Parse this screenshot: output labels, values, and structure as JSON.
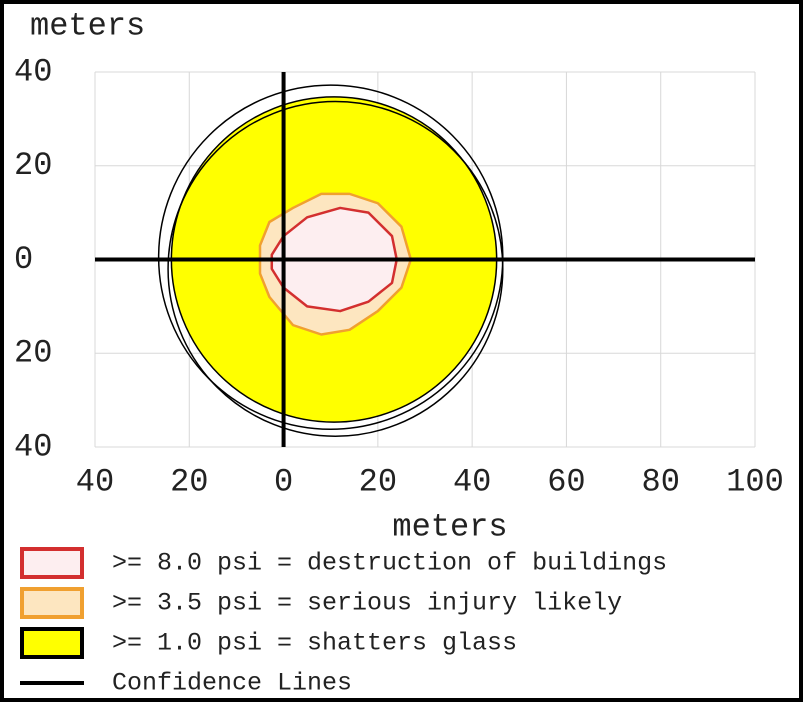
{
  "chart_data": {
    "type": "contour",
    "ylabel": "meters",
    "xlabel": "meters",
    "xlim": [
      -40,
      100
    ],
    "ylim": [
      -40,
      40
    ],
    "xticks": [
      {
        "value": -40,
        "label": "40"
      },
      {
        "value": -20,
        "label": "20"
      },
      0,
      20,
      40,
      60,
      80,
      100
    ],
    "yticks": [
      {
        "value": -40,
        "label": "40"
      },
      {
        "value": -20,
        "label": "20"
      },
      0,
      20,
      40
    ],
    "grid": true,
    "series": [
      {
        "name": ">= 1.0 psi = shatters glass",
        "color": "#ffff00",
        "edge": "#000000",
        "circle": {
          "cx": 10.7,
          "cy": 0,
          "r": 34.5
        }
      },
      {
        "name": ">= 3.5 psi = serious injury likely",
        "color": "#fde6c0",
        "edge": "#f0a030",
        "x": [
          -5,
          -3,
          2,
          8,
          14,
          20,
          25,
          27,
          25,
          20,
          14,
          8,
          2,
          -3,
          -5
        ],
        "y": [
          3,
          8,
          11,
          14,
          14,
          12,
          7,
          0,
          -6,
          -11,
          -15,
          -16,
          -14,
          -8,
          -3
        ]
      },
      {
        "name": ">= 8.0 psi = destruction of buildings",
        "color": "#fdeef0",
        "edge": "#d32f2f",
        "x": [
          -2.5,
          0,
          5,
          12,
          18,
          23,
          24,
          23,
          18,
          12,
          5,
          0,
          -2.5
        ],
        "y": [
          1,
          5,
          9,
          11,
          10,
          5,
          0,
          -5,
          -9,
          -11,
          -10,
          -6,
          -2
        ]
      }
    ],
    "confidence": {
      "name": "Confidence Lines",
      "color": "#000000",
      "circles": [
        {
          "cx": 10,
          "cy": 0.5,
          "r": 36.5
        },
        {
          "cx": 11,
          "cy": -2,
          "r": 35.5
        }
      ]
    }
  }
}
